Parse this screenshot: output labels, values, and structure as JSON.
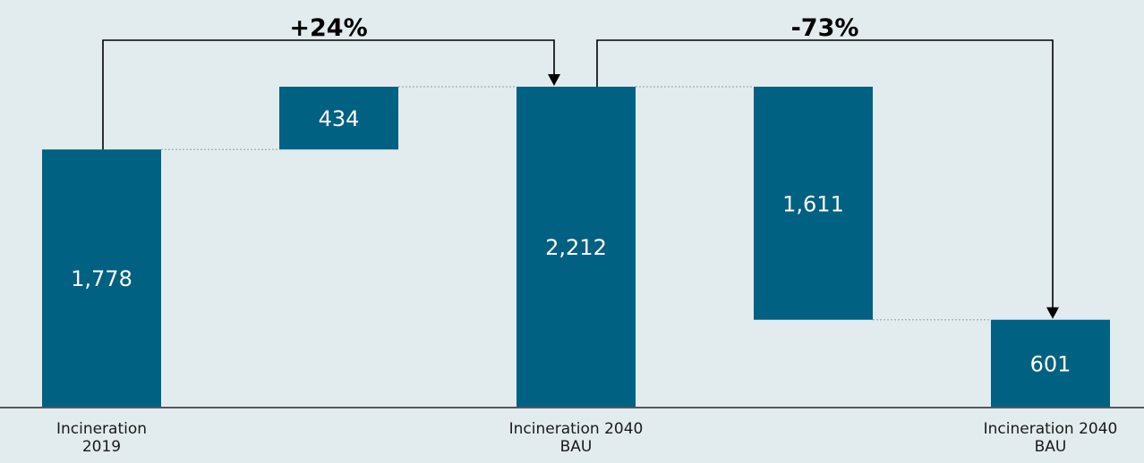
{
  "chart_data": {
    "type": "bar",
    "subtype": "waterfall",
    "categories": [
      [
        "Incineration",
        "2019"
      ],
      [
        ""
      ],
      [
        "Incineration 2040",
        "BAU"
      ],
      [
        ""
      ],
      [
        "Incineration 2040",
        "BAU"
      ]
    ],
    "steps": [
      {
        "kind": "total",
        "value": 1778,
        "label": "1,778"
      },
      {
        "kind": "increase",
        "value": 434,
        "label": "434"
      },
      {
        "kind": "total",
        "value": 2212,
        "label": "2,212"
      },
      {
        "kind": "decrease",
        "value": 1611,
        "label": "1,611"
      },
      {
        "kind": "total",
        "value": 601,
        "label": "601"
      }
    ],
    "annotations": [
      {
        "from_step": 0,
        "to_step": 2,
        "text": "+24%"
      },
      {
        "from_step": 2,
        "to_step": 4,
        "text": "-73%"
      }
    ],
    "ylim": [
      0,
      2212
    ],
    "grid": false,
    "legend": "none"
  },
  "colors": {
    "bar": "#006182",
    "background": "#e2ecef",
    "connector": "#9ab0b8",
    "arrow": "#000000",
    "axis": "#000000"
  }
}
